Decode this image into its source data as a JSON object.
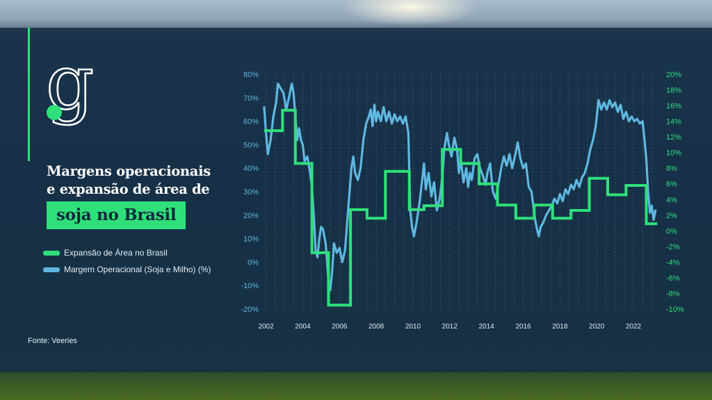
{
  "brand": {
    "logo_letter": "g"
  },
  "title": {
    "line1": "Margens operacionais",
    "line2": "e expansão de área de",
    "highlight": "soja no Brasil"
  },
  "legend": [
    {
      "label": "Expansão de Área no Brasil",
      "color": "#2fe07a"
    },
    {
      "label": "Margem Operacional (Soja e Milho) (%)",
      "color": "#5fb8e0"
    }
  ],
  "source": "Fonte: Veeries",
  "colors": {
    "accent": "#2fe07a",
    "margin_line": "#5fb8e0",
    "left_axis": "#5fb8e0",
    "right_axis": "#2fe07a"
  },
  "chart_data": {
    "type": "line",
    "x_range": [
      2001.6,
      2023.4
    ],
    "x_ticks": [
      "2002",
      "2004",
      "2006",
      "2008",
      "2010",
      "2012",
      "2014",
      "2016",
      "2018",
      "2020",
      "2022"
    ],
    "y_left": {
      "ticks": [
        "80%",
        "70%",
        "60%",
        "50%",
        "40%",
        "30%",
        "20%",
        "10%",
        "0%",
        "-10%",
        "-20%"
      ],
      "range": [
        -20,
        80
      ]
    },
    "y_right": {
      "ticks": [
        "20%",
        "18%",
        "16%",
        "14%",
        "12%",
        "10%",
        "8%",
        "6%",
        "4%",
        "2%",
        "0%",
        "-2%",
        "-4%",
        "-6%",
        "-8%",
        "-10%"
      ],
      "range": [
        -10,
        20
      ]
    },
    "grid": "vertical dashed",
    "series": [
      {
        "name": "Expansão de Área no Brasil",
        "axis": "right",
        "style": "step",
        "points": [
          [
            2001.9,
            12.8
          ],
          [
            2002.9,
            15.4
          ],
          [
            2003.6,
            8.6
          ],
          [
            2004.5,
            -2.8
          ],
          [
            2005.4,
            -9.5
          ],
          [
            2006.6,
            2.7
          ],
          [
            2007.5,
            1.6
          ],
          [
            2008.5,
            7.6
          ],
          [
            2009.8,
            2.7
          ],
          [
            2010.6,
            3.2
          ],
          [
            2011.6,
            10.4
          ],
          [
            2012.6,
            8.6
          ],
          [
            2013.6,
            6.0
          ],
          [
            2014.6,
            3.3
          ],
          [
            2015.6,
            1.6
          ],
          [
            2016.6,
            3.3
          ],
          [
            2017.6,
            1.6
          ],
          [
            2018.6,
            2.6
          ],
          [
            2019.6,
            6.7
          ],
          [
            2020.6,
            4.6
          ],
          [
            2021.6,
            5.8
          ],
          [
            2022.7,
            0.9
          ],
          [
            2023.3,
            0.9
          ]
        ]
      },
      {
        "name": "Margem Operacional (Soja e Milho) (%)",
        "axis": "left",
        "style": "line",
        "points": [
          [
            2001.9,
            66
          ],
          [
            2002.0,
            55
          ],
          [
            2002.1,
            46
          ],
          [
            2002.25,
            52
          ],
          [
            2002.4,
            62
          ],
          [
            2002.55,
            68
          ],
          [
            2002.65,
            76
          ],
          [
            2002.8,
            74
          ],
          [
            2002.95,
            72
          ],
          [
            2003.1,
            65
          ],
          [
            2003.25,
            70
          ],
          [
            2003.4,
            76
          ],
          [
            2003.5,
            72
          ],
          [
            2003.6,
            62
          ],
          [
            2003.7,
            52
          ],
          [
            2003.8,
            57
          ],
          [
            2003.9,
            52
          ],
          [
            2004.0,
            50
          ],
          [
            2004.1,
            43
          ],
          [
            2004.25,
            45
          ],
          [
            2004.4,
            38
          ],
          [
            2004.5,
            32
          ],
          [
            2004.6,
            20
          ],
          [
            2004.7,
            5
          ],
          [
            2004.8,
            2
          ],
          [
            2004.9,
            10
          ],
          [
            2005.0,
            15
          ],
          [
            2005.1,
            14
          ],
          [
            2005.25,
            8
          ],
          [
            2005.4,
            -8
          ],
          [
            2005.5,
            -12
          ],
          [
            2005.6,
            -4
          ],
          [
            2005.7,
            8
          ],
          [
            2005.85,
            4
          ],
          [
            2006.0,
            6
          ],
          [
            2006.15,
            0
          ],
          [
            2006.3,
            5
          ],
          [
            2006.45,
            20
          ],
          [
            2006.55,
            30
          ],
          [
            2006.65,
            40
          ],
          [
            2006.75,
            45
          ],
          [
            2006.85,
            38
          ],
          [
            2007.0,
            35
          ],
          [
            2007.15,
            40
          ],
          [
            2007.3,
            52
          ],
          [
            2007.45,
            59
          ],
          [
            2007.6,
            62
          ],
          [
            2007.7,
            65
          ],
          [
            2007.8,
            58
          ],
          [
            2007.9,
            67
          ],
          [
            2008.0,
            60
          ],
          [
            2008.1,
            64
          ],
          [
            2008.25,
            60
          ],
          [
            2008.4,
            66
          ],
          [
            2008.55,
            60
          ],
          [
            2008.7,
            64
          ],
          [
            2008.85,
            59
          ],
          [
            2009.0,
            63
          ],
          [
            2009.15,
            60
          ],
          [
            2009.3,
            62
          ],
          [
            2009.45,
            59
          ],
          [
            2009.6,
            62
          ],
          [
            2009.75,
            55
          ],
          [
            2009.85,
            22
          ],
          [
            2009.95,
            15
          ],
          [
            2010.05,
            11
          ],
          [
            2010.2,
            17
          ],
          [
            2010.35,
            25
          ],
          [
            2010.5,
            35
          ],
          [
            2010.6,
            42
          ],
          [
            2010.7,
            31
          ],
          [
            2010.85,
            38
          ],
          [
            2011.0,
            28
          ],
          [
            2011.15,
            34
          ],
          [
            2011.3,
            22
          ],
          [
            2011.45,
            27
          ],
          [
            2011.6,
            36
          ],
          [
            2011.7,
            48
          ],
          [
            2011.85,
            55
          ],
          [
            2011.95,
            50
          ],
          [
            2012.1,
            45
          ],
          [
            2012.25,
            53
          ],
          [
            2012.4,
            48
          ],
          [
            2012.5,
            38
          ],
          [
            2012.6,
            44
          ],
          [
            2012.75,
            34
          ],
          [
            2012.9,
            40
          ],
          [
            2013.0,
            32
          ],
          [
            2013.1,
            38
          ],
          [
            2013.2,
            35
          ],
          [
            2013.35,
            44
          ],
          [
            2013.5,
            46
          ],
          [
            2013.65,
            40
          ],
          [
            2013.8,
            37
          ],
          [
            2013.95,
            33
          ],
          [
            2014.05,
            38
          ],
          [
            2014.2,
            42
          ],
          [
            2014.35,
            30
          ],
          [
            2014.5,
            27
          ],
          [
            2014.65,
            33
          ],
          [
            2014.8,
            40
          ],
          [
            2014.95,
            45
          ],
          [
            2015.1,
            41
          ],
          [
            2015.25,
            46
          ],
          [
            2015.4,
            40
          ],
          [
            2015.55,
            45
          ],
          [
            2015.7,
            51
          ],
          [
            2015.85,
            44
          ],
          [
            2016.0,
            40
          ],
          [
            2016.15,
            42
          ],
          [
            2016.3,
            32
          ],
          [
            2016.45,
            30
          ],
          [
            2016.55,
            24
          ],
          [
            2016.65,
            18
          ],
          [
            2016.75,
            14
          ],
          [
            2016.85,
            11
          ],
          [
            2016.95,
            15
          ],
          [
            2017.1,
            17
          ],
          [
            2017.25,
            20
          ],
          [
            2017.4,
            22
          ],
          [
            2017.55,
            24
          ],
          [
            2017.7,
            27
          ],
          [
            2017.85,
            25
          ],
          [
            2018.0,
            29
          ],
          [
            2018.15,
            26
          ],
          [
            2018.3,
            31
          ],
          [
            2018.45,
            29
          ],
          [
            2018.6,
            33
          ],
          [
            2018.75,
            31
          ],
          [
            2018.9,
            35
          ],
          [
            2019.05,
            32
          ],
          [
            2019.2,
            36
          ],
          [
            2019.35,
            38
          ],
          [
            2019.5,
            42
          ],
          [
            2019.65,
            48
          ],
          [
            2019.8,
            52
          ],
          [
            2019.95,
            58
          ],
          [
            2020.1,
            69
          ],
          [
            2020.25,
            65
          ],
          [
            2020.4,
            68
          ],
          [
            2020.55,
            65
          ],
          [
            2020.7,
            69
          ],
          [
            2020.85,
            66
          ],
          [
            2021.0,
            68
          ],
          [
            2021.15,
            64
          ],
          [
            2021.3,
            67
          ],
          [
            2021.45,
            61
          ],
          [
            2021.6,
            64
          ],
          [
            2021.75,
            60
          ],
          [
            2021.9,
            62
          ],
          [
            2022.05,
            60
          ],
          [
            2022.2,
            61
          ],
          [
            2022.35,
            59
          ],
          [
            2022.5,
            60
          ],
          [
            2022.6,
            52
          ],
          [
            2022.7,
            44
          ],
          [
            2022.8,
            30
          ],
          [
            2022.9,
            21
          ],
          [
            2023.0,
            24
          ],
          [
            2023.1,
            18
          ],
          [
            2023.2,
            22
          ]
        ]
      }
    ]
  }
}
